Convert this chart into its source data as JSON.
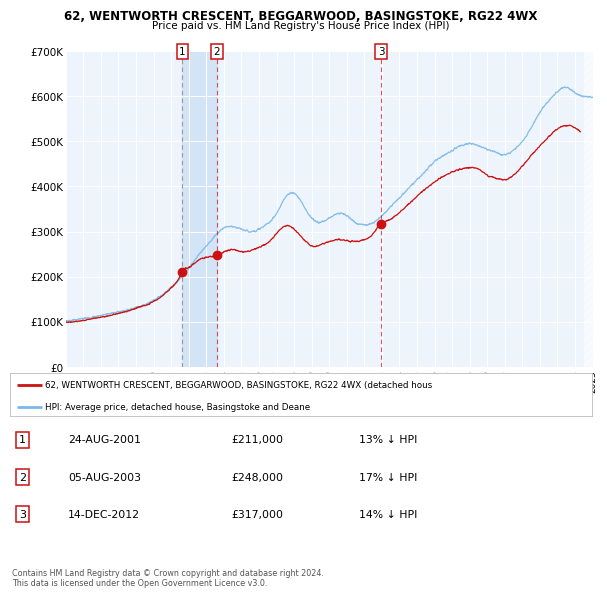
{
  "title1": "62, WENTWORTH CRESCENT, BEGGARWOOD, BASINGSTOKE, RG22 4WX",
  "title2": "Price paid vs. HM Land Registry's House Price Index (HPI)",
  "hpi_color": "#7ab8e8",
  "price_color": "#cc1111",
  "sale_dot_color": "#cc1111",
  "background_color": "#ffffff",
  "plot_bg_color": "#eef4fb",
  "grid_color": "#ffffff",
  "sale_bg_color": "#cce0f5",
  "legend_label_price": "62, WENTWORTH CRESCENT, BEGGARWOOD, BASINGSTOKE, RG22 4WX (detached hous",
  "legend_label_hpi": "HPI: Average price, detached house, Basingstoke and Deane",
  "footer1": "Contains HM Land Registry data © Crown copyright and database right 2024.",
  "footer2": "This data is licensed under the Open Government Licence v3.0.",
  "sales": [
    {
      "num": 1,
      "date": "24-AUG-2001",
      "price": "£211,000",
      "pct": "13% ↓ HPI",
      "year": 2001.644
    },
    {
      "num": 2,
      "date": "05-AUG-2003",
      "price": "£248,000",
      "pct": "17% ↓ HPI",
      "year": 2003.589
    },
    {
      "num": 3,
      "date": "14-DEC-2012",
      "price": "£317,000",
      "pct": "14% ↓ HPI",
      "year": 2012.956
    }
  ],
  "sale_dot_values": [
    211000,
    248000,
    317000
  ],
  "xlim": [
    1995,
    2025
  ],
  "ylim": [
    0,
    700000
  ],
  "yticks": [
    0,
    100000,
    200000,
    300000,
    400000,
    500000,
    600000,
    700000
  ],
  "ytick_labels": [
    "£0",
    "£100K",
    "£200K",
    "£300K",
    "£400K",
    "£500K",
    "£600K",
    "£700K"
  ],
  "xticks": [
    1995,
    1996,
    1997,
    1998,
    1999,
    2000,
    2001,
    2002,
    2003,
    2004,
    2005,
    2006,
    2007,
    2008,
    2009,
    2010,
    2011,
    2012,
    2013,
    2014,
    2015,
    2016,
    2017,
    2018,
    2019,
    2020,
    2021,
    2022,
    2023,
    2024,
    2025
  ]
}
